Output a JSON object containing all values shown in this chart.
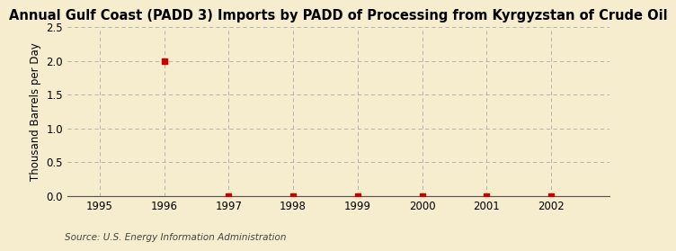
{
  "title": "Annual Gulf Coast (PADD 3) Imports by PADD of Processing from Kyrgyzstan of Crude Oil",
  "ylabel": "Thousand Barrels per Day",
  "source": "Source: U.S. Energy Information Administration",
  "xlim": [
    1994.5,
    2002.9
  ],
  "ylim": [
    0.0,
    2.5
  ],
  "yticks": [
    0.0,
    0.5,
    1.0,
    1.5,
    2.0,
    2.5
  ],
  "xticks": [
    1995,
    1996,
    1997,
    1998,
    1999,
    2000,
    2001,
    2002
  ],
  "data_x": [
    1996,
    1997,
    1998,
    1999,
    2000,
    2001,
    2002
  ],
  "data_y": [
    2.0,
    0.0,
    0.0,
    0.0,
    0.0,
    0.0,
    0.0
  ],
  "marker_color": "#cc0000",
  "marker_size": 4,
  "background_color": "#f5edcd",
  "plot_bg_color": "#f5edcd",
  "grid_color": "#aaaaaa",
  "title_fontsize": 10.5,
  "label_fontsize": 8.5,
  "tick_fontsize": 8.5,
  "source_fontsize": 7.5
}
